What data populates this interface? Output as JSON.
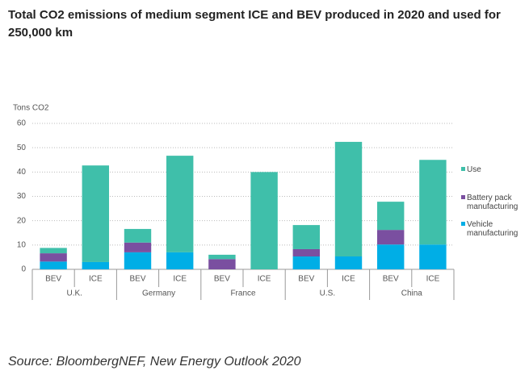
{
  "chart_data": {
    "type": "stacked-bar",
    "title": "Total CO2 emissions of medium segment ICE and BEV produced in 2020 and used for 250,000 km",
    "y_label": "Tons CO2",
    "source": "Source: BloombergNEF, New Energy Outlook 2020",
    "groups": [
      {
        "name": "U.K.",
        "categories": [
          "BEV",
          "ICE"
        ]
      },
      {
        "name": "Germany",
        "categories": [
          "BEV",
          "ICE"
        ]
      },
      {
        "name": "France",
        "categories": [
          "BEV",
          "ICE"
        ]
      },
      {
        "name": "U.S.",
        "categories": [
          "BEV",
          "ICE"
        ]
      },
      {
        "name": "China",
        "categories": [
          "BEV",
          "ICE"
        ]
      }
    ],
    "series": [
      {
        "name": "Vehicle manufacturing",
        "color": "#00aee6",
        "values": [
          3.2,
          3,
          7,
          7,
          0,
          0,
          5.3,
          5.3,
          10.2,
          10.2
        ]
      },
      {
        "name": "Battery pack manufacturing",
        "color": "#7a4fa0",
        "values": [
          3.4,
          0,
          4,
          0,
          4.2,
          0,
          3,
          0,
          6,
          0
        ]
      },
      {
        "name": "Use",
        "color": "#3fbfaa",
        "values": [
          2.2,
          39.7,
          5.6,
          39.7,
          1.8,
          40,
          9.9,
          47.1,
          11.6,
          34.8
        ]
      }
    ],
    "ylim": [
      0,
      60
    ],
    "yticks": [
      0,
      10,
      20,
      30,
      40,
      50,
      60
    ],
    "grid": true
  }
}
